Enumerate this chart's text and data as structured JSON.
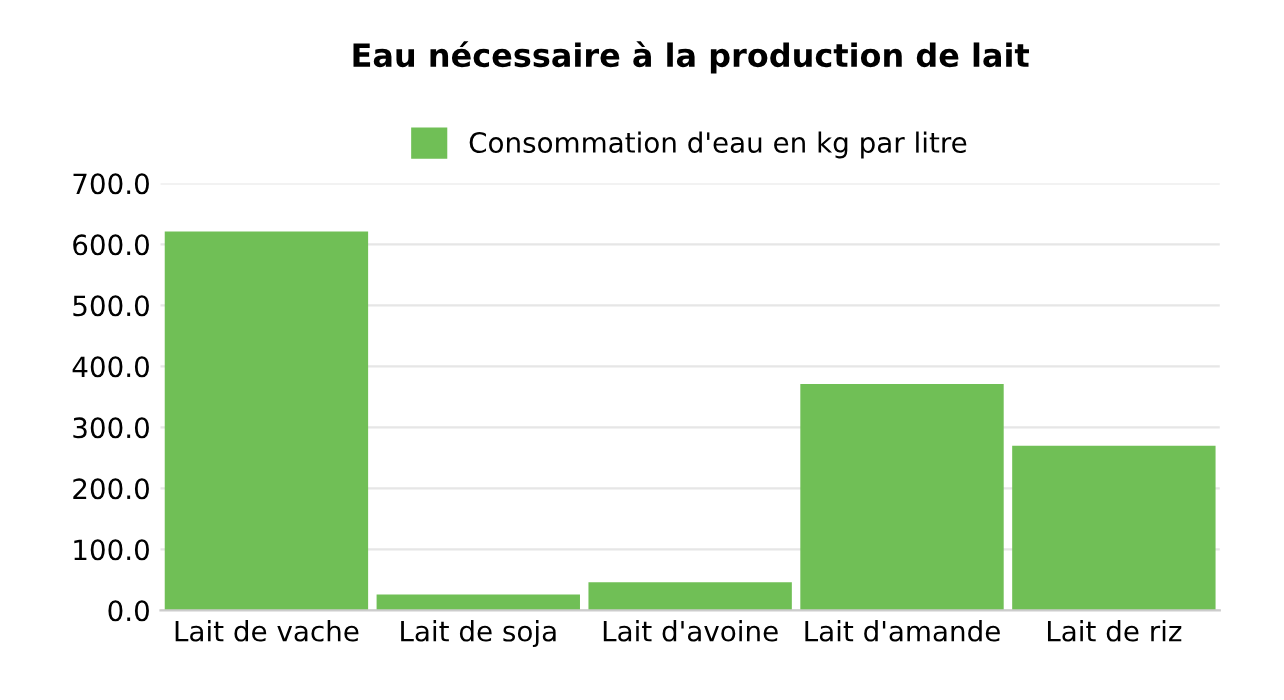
{
  "chart_data": {
    "type": "bar",
    "title": "Eau nécessaire à la production de lait",
    "categories": [
      "Lait de vache",
      "Lait de soja",
      "Lait d'avoine",
      "Lait d'amande",
      "Lait de riz"
    ],
    "series": [
      {
        "name": "Consommation d'eau en kg par litre",
        "color": "#70bf56",
        "values": [
          621,
          26,
          46,
          371,
          270
        ]
      }
    ],
    "ylim": [
      0,
      700
    ],
    "yticks": [
      {
        "value": 0,
        "label": "0.0"
      },
      {
        "value": 100,
        "label": "100.0"
      },
      {
        "value": 200,
        "label": "200.0"
      },
      {
        "value": 300,
        "label": "300.0"
      },
      {
        "value": 400,
        "label": "400.0"
      },
      {
        "value": 500,
        "label": "500.0"
      },
      {
        "value": 600,
        "label": "600.0"
      },
      {
        "value": 700,
        "label": "700.0"
      }
    ],
    "grid": "y",
    "legend": "top"
  }
}
